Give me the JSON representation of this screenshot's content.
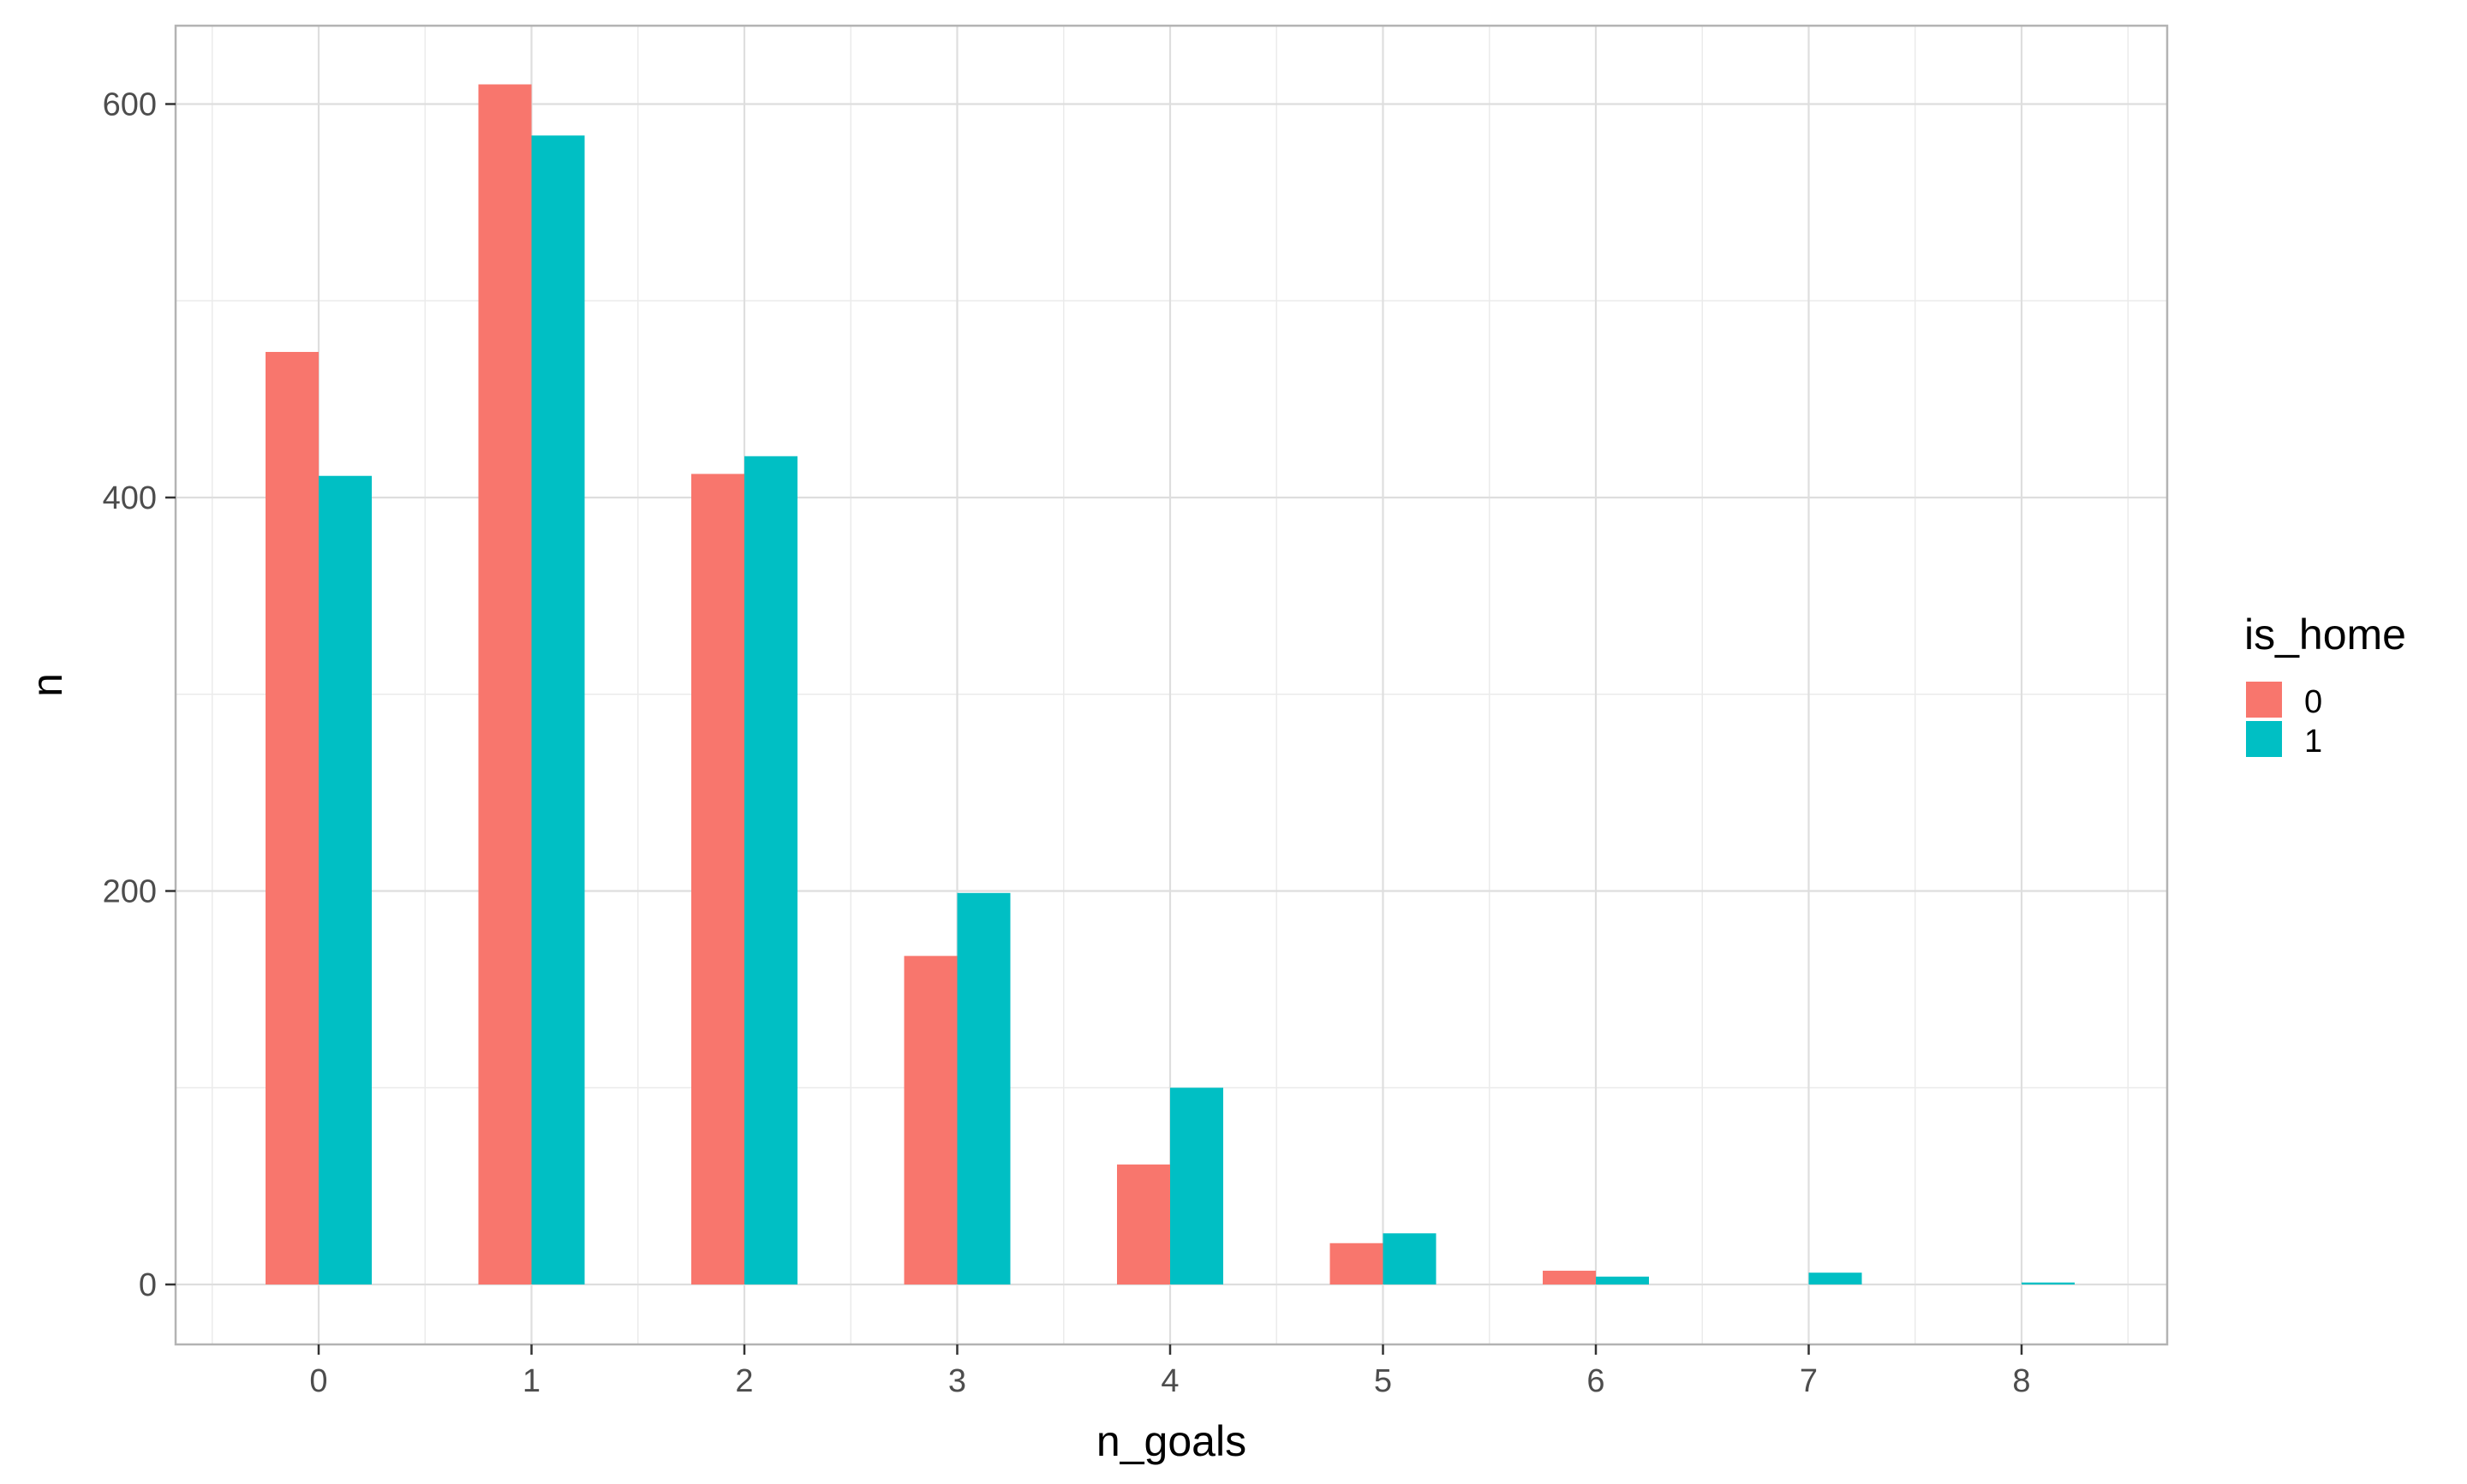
{
  "chart_data": {
    "type": "bar",
    "title": "",
    "xlabel": "n_goals",
    "ylabel": "n",
    "categories": [
      "0",
      "1",
      "2",
      "3",
      "4",
      "5",
      "6",
      "7",
      "8"
    ],
    "series": [
      {
        "name": "0",
        "color": "#F8766D",
        "values": [
          474,
          610,
          412,
          167,
          61,
          21,
          7,
          0,
          0
        ]
      },
      {
        "name": "1",
        "color": "#00BFC4",
        "values": [
          411,
          584,
          421,
          199,
          100,
          26,
          4,
          6,
          1
        ]
      }
    ],
    "y_ticks": [
      0,
      200,
      400,
      600
    ],
    "ylim": [
      -30,
      640
    ],
    "grid": true,
    "legend": {
      "title": "is_home",
      "placement": "right"
    }
  }
}
